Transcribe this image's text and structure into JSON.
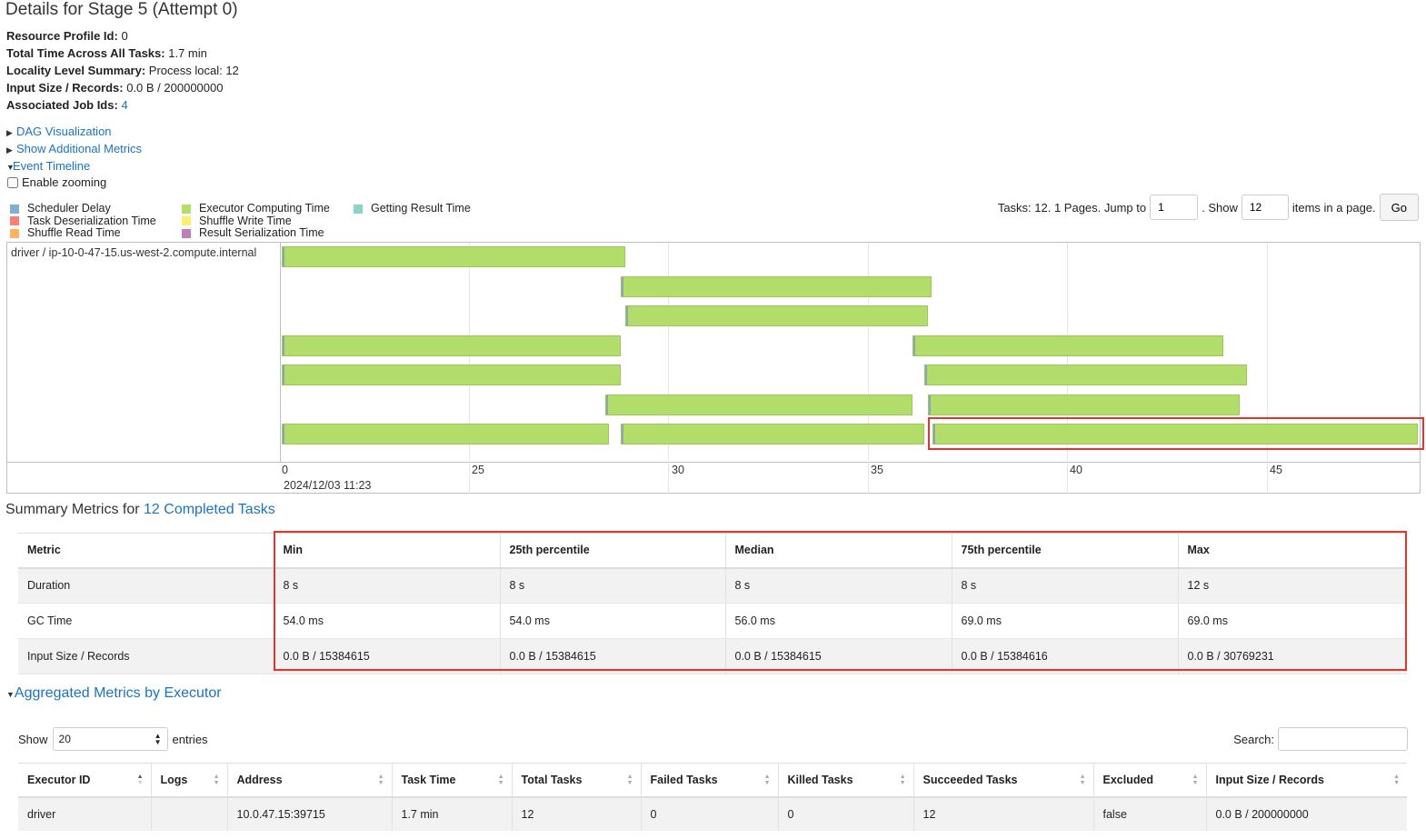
{
  "page": {
    "title": "Details for Stage 5 (Attempt 0)"
  },
  "info": [
    {
      "label": "Resource Profile Id:",
      "value": "0"
    },
    {
      "label": "Total Time Across All Tasks:",
      "value": "1.7 min"
    },
    {
      "label": "Locality Level Summary:",
      "value": "Process local: 12"
    },
    {
      "label": "Input Size / Records:",
      "value": "0.0 B / 200000000"
    },
    {
      "label": "Associated Job Ids:",
      "value": "4"
    }
  ],
  "toggles": {
    "dag": "DAG Visualization",
    "additional_metrics": "Show Additional Metrics",
    "event_timeline": "Event Timeline"
  },
  "zoom_label": "Enable zooming",
  "legend": [
    {
      "label": "Scheduler Delay",
      "color": "#80b1d3"
    },
    {
      "label": "Task Deserialization Time",
      "color": "#fb8072"
    },
    {
      "label": "Shuffle Read Time",
      "color": "#fdb462"
    },
    {
      "label": "Executor Computing Time",
      "color": "#b3de69"
    },
    {
      "label": "Shuffle Write Time",
      "color": "#ffed6f"
    },
    {
      "label": "Result Serialization Time",
      "color": "#bc80bd"
    },
    {
      "label": "Getting Result Time",
      "color": "#8dd3c7"
    }
  ],
  "pager": {
    "text_tasks": "Tasks: 12. 1 Pages. Jump to",
    "page_value": "1",
    "text_show": ". Show",
    "size_value": "12",
    "text_items": "items in a page.",
    "go_label": "Go"
  },
  "timeline": {
    "executor": "driver / ip-10-0-47-15.us-west-2.compute.internal",
    "axis_ticks": [
      "0",
      "25",
      "30",
      "35",
      "40",
      "45"
    ],
    "date_label": "2024/12/03 11:23",
    "tasks": [
      {
        "lane": 0,
        "start": 20.0,
        "end": 28.6
      },
      {
        "lane": 1,
        "start": 28.5,
        "end": 36.3
      },
      {
        "lane": 2,
        "start": 28.6,
        "end": 36.2
      },
      {
        "lane": 3,
        "start": 20.0,
        "end": 28.5
      },
      {
        "lane": 3,
        "start": 35.8,
        "end": 43.6
      },
      {
        "lane": 4,
        "start": 20.0,
        "end": 28.5
      },
      {
        "lane": 4,
        "start": 36.1,
        "end": 44.2
      },
      {
        "lane": 5,
        "start": 28.1,
        "end": 35.8
      },
      {
        "lane": 5,
        "start": 36.2,
        "end": 44.0
      },
      {
        "lane": 6,
        "start": 20.0,
        "end": 28.2
      },
      {
        "lane": 6,
        "start": 28.5,
        "end": 36.1
      },
      {
        "lane": 6,
        "start": 36.3,
        "end": 48.6
      }
    ]
  },
  "summary": {
    "prefix": "Summary Metrics for ",
    "link": "12 Completed Tasks",
    "headers": [
      "Metric",
      "Min",
      "25th percentile",
      "Median",
      "75th percentile",
      "Max"
    ],
    "rows": [
      [
        "Duration",
        "8 s",
        "8 s",
        "8 s",
        "8 s",
        "12 s"
      ],
      [
        "GC Time",
        "54.0 ms",
        "54.0 ms",
        "56.0 ms",
        "69.0 ms",
        "69.0 ms"
      ],
      [
        "Input Size / Records",
        "0.0 B / 15384615",
        "0.0 B / 15384615",
        "0.0 B / 15384615",
        "0.0 B / 15384616",
        "0.0 B / 30769231"
      ]
    ]
  },
  "aggregated": {
    "title": "Aggregated Metrics by Executor",
    "show_label": "Show",
    "entries_value": "20",
    "entries_label": "entries",
    "search_label": "Search:",
    "headers": [
      "Executor ID",
      "Logs",
      "Address",
      "Task Time",
      "Total Tasks",
      "Failed Tasks",
      "Killed Tasks",
      "Succeeded Tasks",
      "Excluded",
      "Input Size / Records"
    ],
    "rows": [
      [
        "driver",
        "",
        "10.0.47.15:39715",
        "1.7 min",
        "12",
        "0",
        "0",
        "12",
        "false",
        "0.0 B / 200000000"
      ]
    ]
  }
}
